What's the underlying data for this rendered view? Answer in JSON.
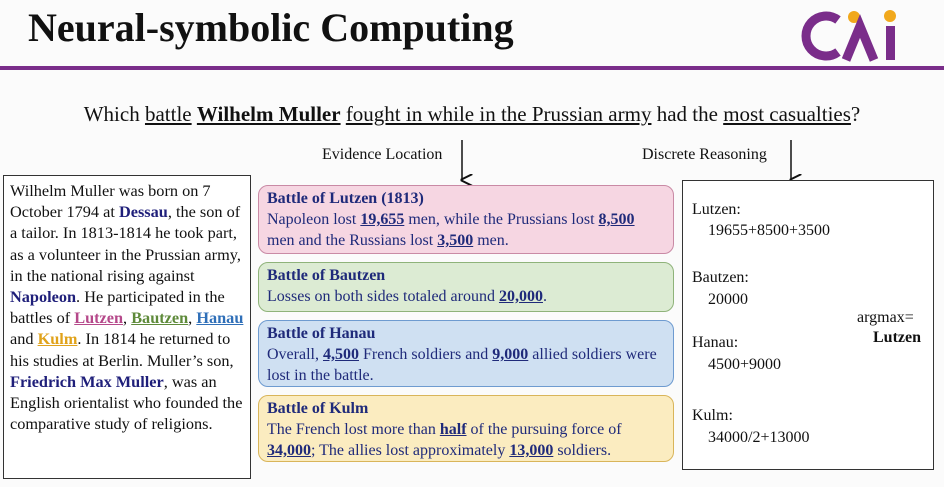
{
  "header": {
    "title": "Neural-symbolic Computing"
  },
  "question": [
    "Which ",
    "battle",
    " ",
    "Wilhelm Muller",
    " ",
    "fought in while in the Prussian army",
    " had the ",
    "most casualties",
    "?"
  ],
  "labels": {
    "evidence": "Evidence Location",
    "reasoning": "Discrete Reasoning"
  },
  "passage": [
    "Wilhelm Muller was born on 7 October 1794 at ",
    "Dessau",
    ", the son of a tailor. In 1813-1814 he took part, as a volunteer in the Prussian army, in the national rising against ",
    "Napoleon",
    ". He participated in the battles of ",
    "Lutzen",
    ", ",
    "Bautzen",
    ", ",
    "Hanau",
    " and ",
    "Kulm",
    ". In 1814 he returned to his studies at Berlin. Muller’s son, ",
    "Friedrich Max Muller",
    ", was an English orientalist who founded the comparative study of religions."
  ],
  "evidence": [
    {
      "title": "Battle of Lutzen (1813)",
      "text": [
        "Napoleon lost ",
        "19,655",
        " men, while the Prussians lost ",
        "8,500",
        " men and the Russians lost ",
        "3,500",
        " men."
      ]
    },
    {
      "title": "Battle of Bautzen",
      "text": [
        "Losses on both sides totaled around ",
        "20,000",
        "."
      ]
    },
    {
      "title": "Battle of Hanau",
      "text": [
        "Overall, ",
        "4,500",
        " French soldiers and ",
        "9,000",
        " allied soldiers were lost in the battle."
      ]
    },
    {
      "title": "Battle of Kulm",
      "text": [
        "The French lost more than ",
        "half",
        " of the pursuing force of ",
        "34,000",
        "; The allies lost approximately ",
        "13,000",
        " soldiers."
      ]
    }
  ],
  "reasoning": [
    {
      "name": "Lutzen:",
      "expr": "19655+8500+3500"
    },
    {
      "name": "Bautzen:",
      "expr": "20000"
    },
    {
      "name": "Hanau:",
      "expr": "4500+9000"
    },
    {
      "name": "Kulm:",
      "expr": "34000/2+13000"
    }
  ],
  "result": {
    "label": "argmax=",
    "value": "Lutzen"
  }
}
